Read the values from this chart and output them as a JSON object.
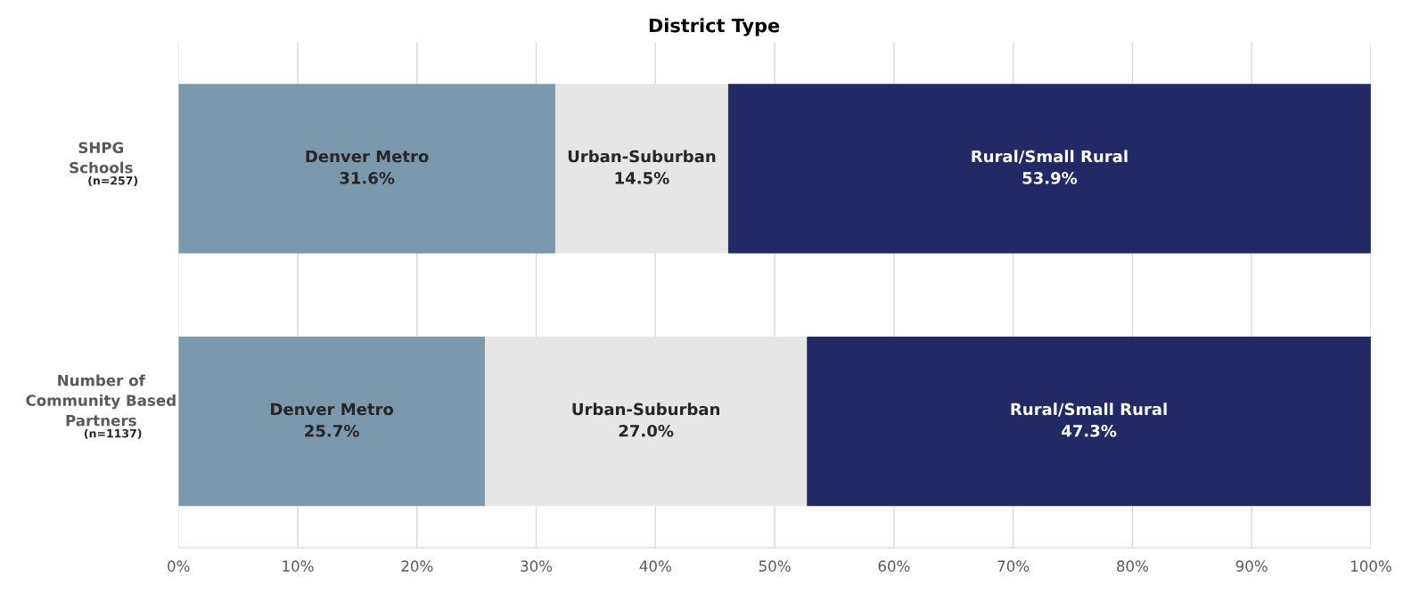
{
  "chart_data": {
    "type": "bar",
    "orientation": "horizontal",
    "stacked": true,
    "title": "District Type",
    "categories": [
      "SHPG\nSchools\n(n=257)",
      "Number of\nCommunity Based\nPartners\n(n=1137)"
    ],
    "series": [
      {
        "name": "Denver Metro",
        "color": "#7b98ad",
        "values": [
          31.6,
          25.7
        ],
        "value_labels": [
          "31.6%",
          "25.7%"
        ]
      },
      {
        "name": "Urban-Suburban",
        "color": "#e6e6e6",
        "values": [
          14.5,
          27.0
        ],
        "value_labels": [
          "14.5%",
          "27.0%"
        ]
      },
      {
        "name": "Rural/Small Rural",
        "color": "#222a66",
        "values": [
          53.9,
          47.3
        ],
        "value_labels": [
          "53.9%",
          "47.3%"
        ]
      }
    ],
    "xlim": [
      0,
      100
    ],
    "xticks": [
      {
        "value": 0,
        "label": "0%"
      },
      {
        "value": 10,
        "label": "10%"
      },
      {
        "value": 20,
        "label": "20%"
      },
      {
        "value": 30,
        "label": "30%"
      },
      {
        "value": 40,
        "label": "40%"
      },
      {
        "value": 50,
        "label": "50%"
      },
      {
        "value": 60,
        "label": "60%"
      },
      {
        "value": 70,
        "label": "70%"
      },
      {
        "value": 80,
        "label": "80%"
      },
      {
        "value": 90,
        "label": "90%"
      },
      {
        "value": 100,
        "label": "100%"
      }
    ],
    "grid": "x",
    "legend": false
  }
}
